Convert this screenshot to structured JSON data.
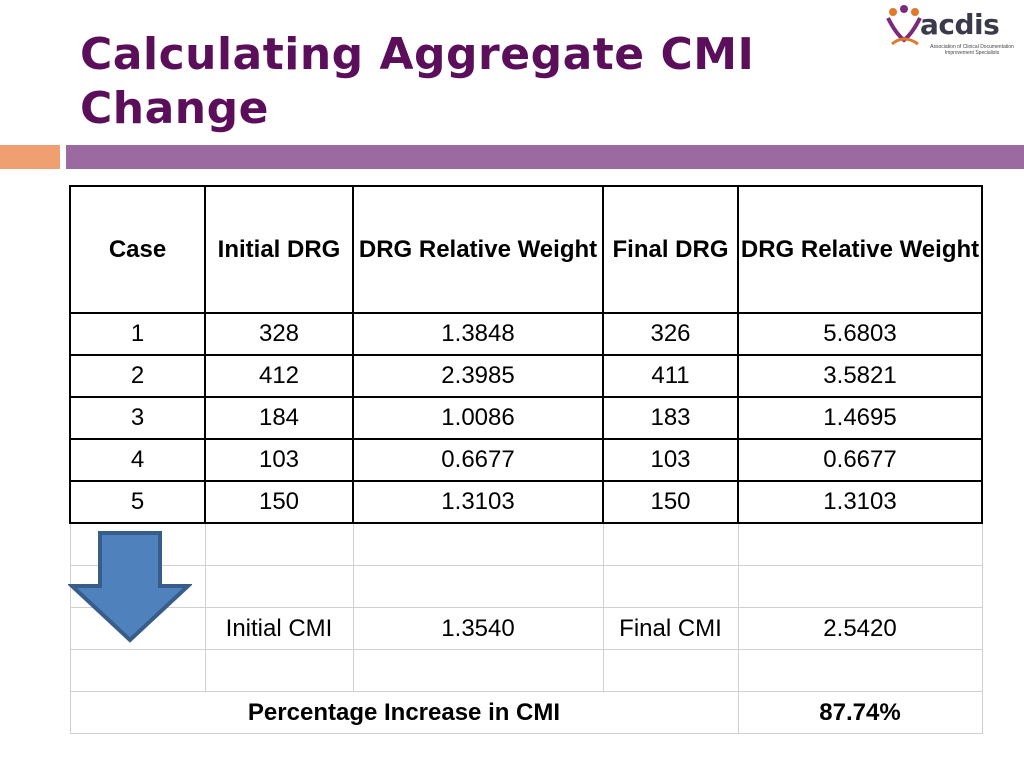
{
  "title": "Calculating Aggregate CMI Change",
  "logo": {
    "wordmark": "acdis",
    "tagline": "Association of Clinical Documentation Improvement Specialists"
  },
  "table": {
    "headers": [
      "Case",
      "Initial DRG",
      "DRG Relative Weight",
      "Final DRG",
      "DRG Relative Weight"
    ],
    "rows": [
      [
        "1",
        "328",
        "1.3848",
        "326",
        "5.6803"
      ],
      [
        "2",
        "412",
        "2.3985",
        "411",
        "3.5821"
      ],
      [
        "3",
        "184",
        "1.0086",
        "183",
        "1.4695"
      ],
      [
        "4",
        "103",
        "0.6677",
        "103",
        "0.6677"
      ],
      [
        "5",
        "150",
        "1.3103",
        "150",
        "1.3103"
      ]
    ],
    "initial_cmi_label": "Initial CMI",
    "initial_cmi_value": "1.3540",
    "final_cmi_label": "Final CMI",
    "final_cmi_value": "2.5420",
    "percentage_label": "Percentage Increase in CMI",
    "percentage_value": "87.74%"
  },
  "colors": {
    "title": "#5b0f5b",
    "accent_orange": "#f0a070",
    "accent_purple": "#9a6aa0",
    "arrow_fill": "#4f81bd",
    "arrow_stroke": "#385d8a"
  },
  "icons": {
    "arrow": "down-arrow-icon",
    "logo": "acdis-logo-icon"
  }
}
